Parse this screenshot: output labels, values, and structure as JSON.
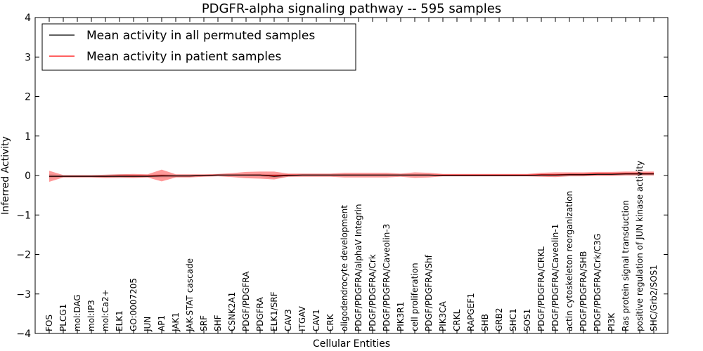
{
  "chart_data": {
    "type": "line",
    "title": "PDGFR-alpha signaling pathway -- 595 samples",
    "xlabel": "Cellular Entities",
    "ylabel": "Inferred Activity",
    "ylim": [
      -4,
      4
    ],
    "yticks": [
      "−4",
      "−3",
      "−2",
      "−1",
      "0",
      "1",
      "2",
      "3",
      "4"
    ],
    "ytick_values": [
      -4,
      -3,
      -2,
      -1,
      0,
      1,
      2,
      3,
      4
    ],
    "legend_position": "top-left",
    "categories": [
      "FOS",
      "PLCG1",
      "mol:DAG",
      "mol:IP3",
      "mol:Ca2+",
      "ELK1",
      "GO:0007205",
      "JUN",
      "AP1",
      "JAK1",
      "JAK-STAT cascade",
      "SRF",
      "SHF",
      "CSNK2A1",
      "PDGF/PDGFRA",
      "PDGFRA",
      "ELK1/SRF",
      "CAV3",
      "ITGAV",
      "CAV1",
      "CRK",
      "oligodendrocyte development",
      "PDGF/PDGFRA/alphaV Integrin",
      "PDGF/PDGFRA/Crk",
      "PDGF/PDGFRA/Caveolin-3",
      "PIK3R1",
      "cell proliferation",
      "PDGF/PDGFRA/Shf",
      "PIK3CA",
      "CRKL",
      "RAPGEF1",
      "SHB",
      "GRB2",
      "SHC1",
      "SOS1",
      "PDGF/PDGFRA/CRKL",
      "PDGF/PDGFRA/Caveolin-1",
      "actin cytoskeleton reorganization",
      "PDGF/PDGFRA/SHB",
      "PDGF/PDGFRA/Crk/C3G",
      "PI3K",
      "Ras protein signal transduction",
      "positive regulation of JUN kinase activity",
      "SHC/Grb2/SOS1"
    ],
    "series": [
      {
        "name": "Mean activity in all permuted samples",
        "color": "#000000",
        "values": [
          -0.02,
          -0.02,
          -0.02,
          -0.02,
          -0.02,
          -0.02,
          -0.02,
          -0.02,
          -0.01,
          -0.01,
          -0.01,
          0.0,
          0.01,
          0.01,
          0.01,
          0.01,
          -0.02,
          0.0,
          0.01,
          0.01,
          0.01,
          0.01,
          0.01,
          0.01,
          0.01,
          0.01,
          0.01,
          0.01,
          0.0,
          0.0,
          0.0,
          0.0,
          0.0,
          0.0,
          0.0,
          0.01,
          0.01,
          0.02,
          0.02,
          0.03,
          0.03,
          0.04,
          0.04,
          0.04
        ],
        "band": [
          0.05,
          0.03,
          0.03,
          0.03,
          0.04,
          0.05,
          0.04,
          0.03,
          0.04,
          0.03,
          0.03,
          0.02,
          0.02,
          0.02,
          0.02,
          0.03,
          0.05,
          0.03,
          0.02,
          0.02,
          0.02,
          0.02,
          0.02,
          0.02,
          0.02,
          0.02,
          0.02,
          0.02,
          0.02,
          0.02,
          0.02,
          0.02,
          0.02,
          0.02,
          0.02,
          0.03,
          0.03,
          0.03,
          0.03,
          0.03,
          0.03,
          0.03,
          0.03,
          0.03
        ]
      },
      {
        "name": "Mean activity in patient samples",
        "color": "#ff0000",
        "values": [
          -0.02,
          -0.02,
          -0.02,
          -0.02,
          -0.02,
          -0.01,
          -0.01,
          -0.01,
          0.0,
          -0.01,
          -0.01,
          0.0,
          0.01,
          0.01,
          0.01,
          0.01,
          0.0,
          0.01,
          0.01,
          0.01,
          0.01,
          0.01,
          0.01,
          0.01,
          0.01,
          0.01,
          0.01,
          0.01,
          0.01,
          0.01,
          0.01,
          0.01,
          0.01,
          0.01,
          0.01,
          0.02,
          0.02,
          0.03,
          0.03,
          0.04,
          0.04,
          0.05,
          0.05,
          0.05
        ],
        "band": [
          0.14,
          0.03,
          0.03,
          0.03,
          0.04,
          0.04,
          0.05,
          0.04,
          0.15,
          0.04,
          0.04,
          0.03,
          0.03,
          0.05,
          0.08,
          0.09,
          0.1,
          0.04,
          0.04,
          0.04,
          0.04,
          0.06,
          0.06,
          0.06,
          0.06,
          0.04,
          0.07,
          0.06,
          0.03,
          0.03,
          0.03,
          0.03,
          0.03,
          0.03,
          0.03,
          0.05,
          0.06,
          0.05,
          0.05,
          0.05,
          0.05,
          0.05,
          0.05,
          0.05
        ]
      }
    ]
  }
}
